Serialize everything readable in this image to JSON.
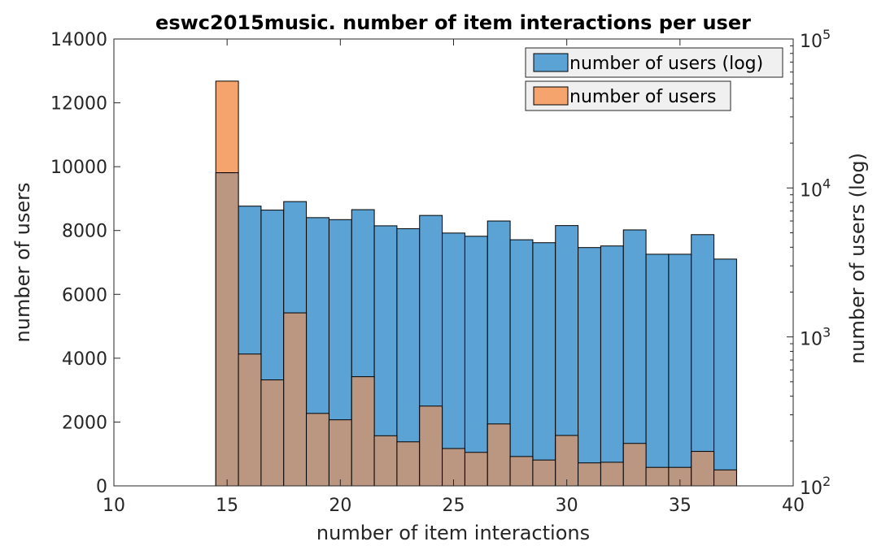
{
  "chart_data": {
    "type": "bar",
    "title": "eswc2015music. number of item interactions per user",
    "xlabel": "number of item interactions",
    "ylabel": "number of users",
    "ylabel_right": "number of users (log)",
    "xlim": [
      10,
      40
    ],
    "ylim": [
      0,
      14000
    ],
    "ylim_right": [
      100,
      100000
    ],
    "yscale_right": "log",
    "x_ticks": [
      "10",
      "15",
      "20",
      "25",
      "30",
      "35",
      "40"
    ],
    "y_ticks": [
      "0",
      "2000",
      "4000",
      "6000",
      "8000",
      "10000",
      "12000",
      "14000"
    ],
    "y_ticks_right": [
      {
        "base": "10",
        "exp": "2"
      },
      {
        "base": "10",
        "exp": "3"
      },
      {
        "base": "10",
        "exp": "4"
      },
      {
        "base": "10",
        "exp": "5"
      }
    ],
    "bin_width": 1,
    "bins": [
      15,
      16,
      17,
      18,
      19,
      20,
      21,
      22,
      23,
      24,
      25,
      26,
      27,
      28,
      29,
      30,
      31,
      32,
      33,
      34,
      35,
      36,
      37
    ],
    "series": [
      {
        "name": "number of users (log)",
        "axis": "right",
        "color": "#5ba3d4",
        "values": [
          12650,
          7550,
          7100,
          8100,
          6320,
          6130,
          7150,
          5570,
          5330,
          6540,
          4980,
          4740,
          6000,
          4490,
          4290,
          5590,
          3980,
          4080,
          5230,
          3590,
          3590,
          4860,
          3330
        ]
      },
      {
        "name": "number of users",
        "axis": "left",
        "color": "#f5a46e",
        "values": [
          12680,
          4130,
          3320,
          5420,
          2270,
          2070,
          3420,
          1570,
          1380,
          2500,
          1170,
          1050,
          1940,
          920,
          810,
          1580,
          720,
          740,
          1330,
          580,
          580,
          1080,
          500
        ]
      }
    ],
    "overlap_color": "#bb9681",
    "grid": false,
    "legend_position": "top-right"
  }
}
